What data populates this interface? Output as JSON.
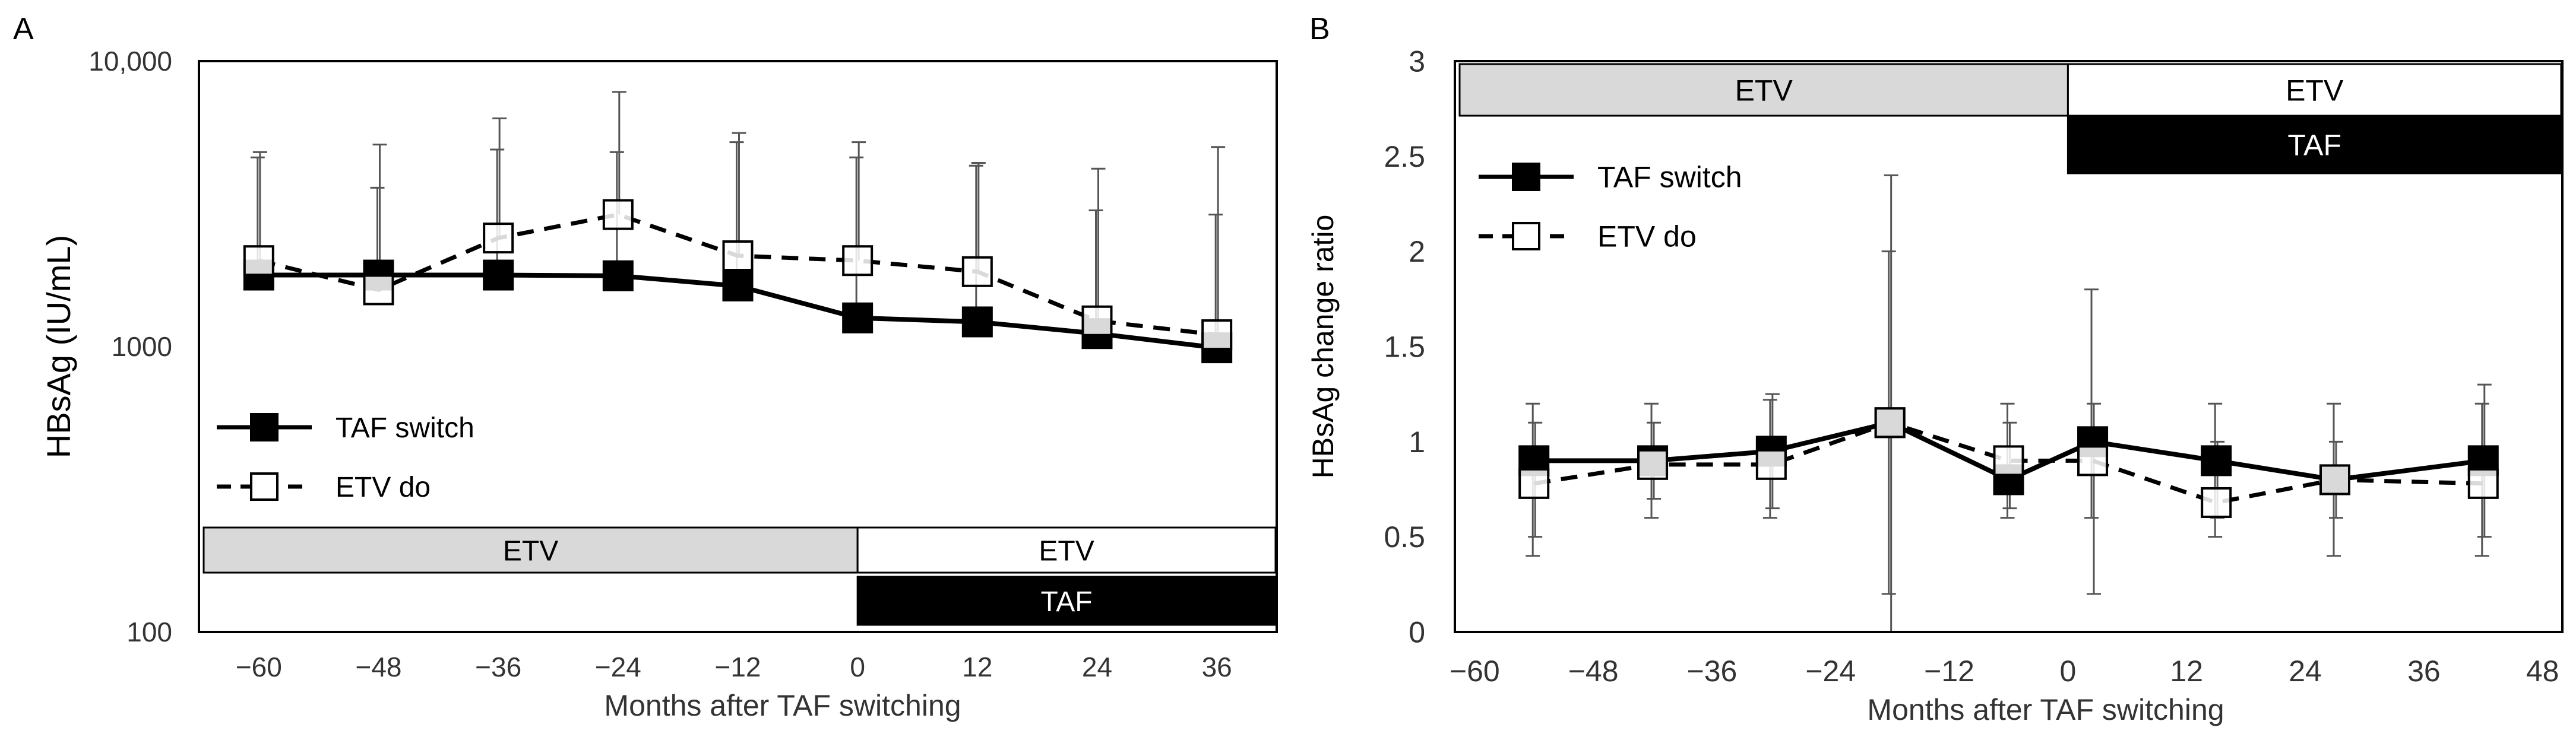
{
  "chart_data": [
    {
      "panel_label": "A",
      "type": "line",
      "ylabel": "HBsAg (IU/mL)",
      "xlabel": "Months after TAF switching",
      "y_scale": "log",
      "ylim": [
        100,
        10000
      ],
      "xlim": [
        -66,
        42
      ],
      "x_ticks": [
        -60,
        -48,
        -36,
        -24,
        -12,
        0,
        12,
        24,
        36
      ],
      "x_tick_labels": [
        "−60",
        "−48",
        "−36",
        "−24",
        "−12",
        "0",
        "12",
        "24",
        "36"
      ],
      "y_ticks": [
        100,
        1000,
        10000
      ],
      "y_tick_labels": [
        "100",
        "1000",
        "10,000"
      ],
      "grid": false,
      "legend_position": "lower-left",
      "series": [
        {
          "name": "TAF switch",
          "line_style": "solid",
          "marker": "filled-square",
          "x": [
            -60,
            -48,
            -36,
            -24,
            -12,
            0,
            12,
            24,
            36
          ],
          "values": [
            1780,
            1780,
            1780,
            1770,
            1630,
            1260,
            1220,
            1110,
            990
          ],
          "error_upper": [
            4600,
            3600,
            4900,
            4800,
            5200,
            4600,
            4300,
            3000,
            2900
          ]
        },
        {
          "name": "ETV do",
          "line_style": "dashed",
          "marker": "open-square",
          "x": [
            -60,
            -48,
            -36,
            -24,
            -12,
            0,
            12,
            24,
            36
          ],
          "values": [
            2000,
            1580,
            2400,
            2900,
            2080,
            2000,
            1830,
            1230,
            1100
          ],
          "error_upper": [
            4800,
            5100,
            6300,
            7800,
            5600,
            5200,
            4400,
            4200,
            5000
          ]
        }
      ],
      "treatment_bars": [
        {
          "label": "ETV",
          "x": [
            -66,
            0
          ],
          "fill": "#d9d9d9",
          "text_color": "#000000",
          "row": 0
        },
        {
          "label": "ETV",
          "x": [
            0,
            42
          ],
          "fill": "#ffffff",
          "text_color": "#000000",
          "row": 0
        },
        {
          "label": "TAF",
          "x": [
            0,
            42
          ],
          "fill": "#000000",
          "text_color": "#ffffff",
          "row": 1
        }
      ]
    },
    {
      "panel_label": "B",
      "type": "line",
      "ylabel": "HBsAg change ratio",
      "xlabel": "Months after TAF switching",
      "ylim": [
        0,
        3
      ],
      "xlim": [
        -62,
        50
      ],
      "x_ticks": [
        -60,
        -48,
        -36,
        -24,
        -12,
        0,
        12,
        24,
        36,
        48
      ],
      "x_tick_labels": [
        "−60",
        "−48",
        "−36",
        "−24",
        "−12",
        "0",
        "12",
        "24",
        "36",
        "48"
      ],
      "y_ticks": [
        0,
        0.5,
        1,
        1.5,
        2,
        2.5,
        3
      ],
      "y_tick_labels": [
        "0",
        "0.5",
        "1",
        "1.5",
        "2",
        "2.5",
        "3"
      ],
      "grid": false,
      "legend_position": "top-left",
      "series": [
        {
          "name": "TAF switch",
          "line_style": "solid",
          "marker": "filled-square",
          "x": [
            -54,
            -42,
            -30,
            -18,
            -6,
            2.5,
            15,
            27,
            42
          ],
          "values": [
            0.9,
            0.9,
            0.95,
            1.1,
            0.8,
            1.0,
            0.9,
            0.8,
            0.9
          ],
          "error_upper": [
            1.2,
            1.2,
            1.22,
            2.0,
            1.2,
            1.8,
            1.2,
            1.2,
            1.2
          ],
          "error_lower": [
            0.4,
            0.6,
            0.6,
            0.2,
            0.6,
            0.6,
            0.5,
            0.4,
            0.4
          ]
        },
        {
          "name": "ETV do",
          "line_style": "dashed",
          "marker": "open-square",
          "x": [
            -54,
            -42,
            -30,
            -18,
            -6,
            2.5,
            15,
            27,
            42
          ],
          "values": [
            0.78,
            0.88,
            0.88,
            1.1,
            0.9,
            0.9,
            0.68,
            0.8,
            0.78
          ],
          "error_upper": [
            1.1,
            1.1,
            1.25,
            2.4,
            1.1,
            1.2,
            1.0,
            1.0,
            1.3
          ],
          "error_lower": [
            0.5,
            0.7,
            0.65,
            0,
            0.65,
            0.2,
            0.6,
            0.6,
            0.5
          ]
        }
      ],
      "treatment_bars": [
        {
          "label": "ETV",
          "x": [
            -62,
            0
          ],
          "fill": "#d9d9d9",
          "text_color": "#000000",
          "row": 0
        },
        {
          "label": "ETV",
          "x": [
            0,
            50
          ],
          "fill": "#ffffff",
          "text_color": "#000000",
          "row": 0
        },
        {
          "label": "TAF",
          "x": [
            0,
            50
          ],
          "fill": "#000000",
          "text_color": "#ffffff",
          "row": 1
        }
      ]
    }
  ]
}
